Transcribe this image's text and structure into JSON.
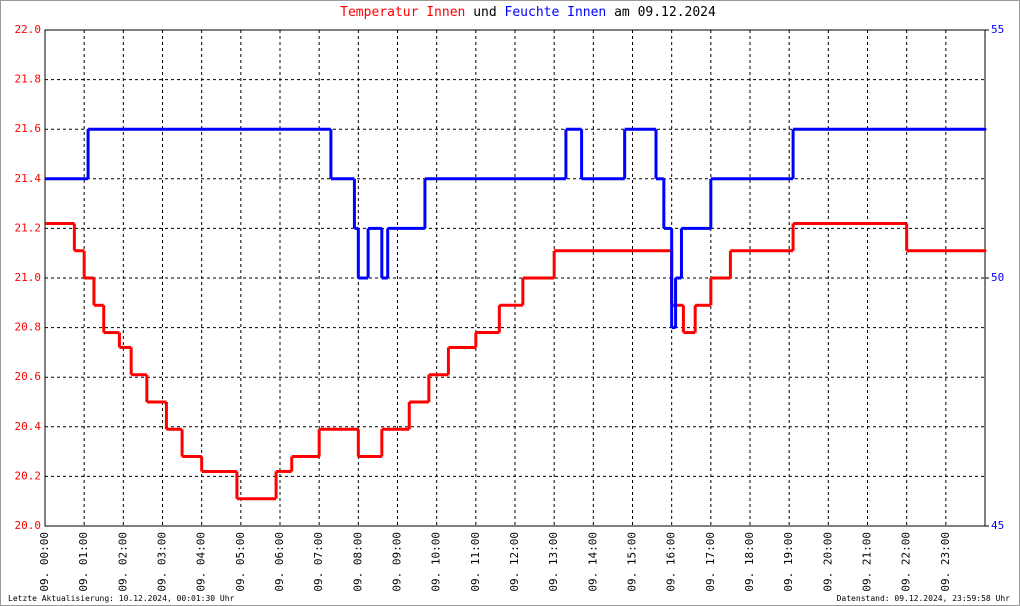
{
  "chart_data": {
    "type": "line",
    "step": "post",
    "title_parts": [
      "und",
      "am 09.12.2024"
    ],
    "footer_left": "Letzte Aktualisierung: 10.12.2024, 00:01:30 Uhr",
    "footer_right": "Datenstand: 09.12.2024, 23:59:58 Uhr",
    "xlim": [
      0,
      24
    ],
    "xticks": [
      {
        "value": 0,
        "label": "09. 00:00"
      },
      {
        "value": 1,
        "label": "09. 01:00"
      },
      {
        "value": 2,
        "label": "09. 02:00"
      },
      {
        "value": 3,
        "label": "09. 03:00"
      },
      {
        "value": 4,
        "label": "09. 04:00"
      },
      {
        "value": 5,
        "label": "09. 05:00"
      },
      {
        "value": 6,
        "label": "09. 06:00"
      },
      {
        "value": 7,
        "label": "09. 07:00"
      },
      {
        "value": 8,
        "label": "09. 08:00"
      },
      {
        "value": 9,
        "label": "09. 09:00"
      },
      {
        "value": 10,
        "label": "09. 10:00"
      },
      {
        "value": 11,
        "label": "09. 11:00"
      },
      {
        "value": 12,
        "label": "09. 12:00"
      },
      {
        "value": 13,
        "label": "09. 13:00"
      },
      {
        "value": 14,
        "label": "09. 14:00"
      },
      {
        "value": 15,
        "label": "09. 15:00"
      },
      {
        "value": 16,
        "label": "09. 16:00"
      },
      {
        "value": 17,
        "label": "09. 17:00"
      },
      {
        "value": 18,
        "label": "09. 18:00"
      },
      {
        "value": 19,
        "label": "09. 19:00"
      },
      {
        "value": 20,
        "label": "09. 20:00"
      },
      {
        "value": 21,
        "label": "09. 21:00"
      },
      {
        "value": 22,
        "label": "09. 22:00"
      },
      {
        "value": 23,
        "label": "09. 23:00"
      }
    ],
    "ylim": [
      20.0,
      22.0
    ],
    "yticks": [
      {
        "value": 20.0,
        "label": "20.0"
      },
      {
        "value": 20.2,
        "label": "20.2"
      },
      {
        "value": 20.4,
        "label": "20.4"
      },
      {
        "value": 20.6,
        "label": "20.6"
      },
      {
        "value": 20.8,
        "label": "20.8"
      },
      {
        "value": 21.0,
        "label": "21.0"
      },
      {
        "value": 21.2,
        "label": "21.2"
      },
      {
        "value": 21.4,
        "label": "21.4"
      },
      {
        "value": 21.6,
        "label": "21.6"
      },
      {
        "value": 21.8,
        "label": "21.8"
      },
      {
        "value": 22.0,
        "label": "22.0"
      }
    ],
    "y2lim": [
      45,
      55
    ],
    "y2ticks": [
      45,
      50,
      55
    ],
    "grid": true,
    "series": [
      {
        "name": "Temperatur Innen",
        "color": "#ff0000",
        "axis": "y",
        "x": [
          0,
          0.75,
          1,
          1.25,
          1.5,
          1.9,
          2.2,
          2.6,
          3.1,
          3.5,
          4,
          4.9,
          5.9,
          6.3,
          7,
          8,
          8.6,
          9.3,
          9.8,
          10.3,
          11,
          11.6,
          12.2,
          13,
          16,
          16.3,
          16.6,
          17,
          17.5,
          19.1,
          22,
          24
        ],
        "values": [
          21.22,
          21.11,
          21.0,
          20.89,
          20.78,
          20.72,
          20.61,
          20.5,
          20.39,
          20.28,
          20.22,
          20.11,
          20.22,
          20.28,
          20.39,
          20.28,
          20.39,
          20.5,
          20.61,
          20.72,
          20.78,
          20.89,
          21.0,
          21.11,
          20.89,
          20.78,
          20.89,
          21.0,
          21.11,
          21.22,
          21.11,
          21.11
        ]
      },
      {
        "name": "Feuchte Innen",
        "color": "#0000ff",
        "axis": "y2",
        "x": [
          0,
          1.1,
          7.3,
          7.9,
          8,
          8.25,
          8.6,
          8.75,
          9.7,
          13.3,
          13.7,
          14.8,
          15.6,
          15.8,
          16,
          16.1,
          16.25,
          17,
          19.1,
          24
        ],
        "values": [
          52,
          53,
          52,
          51,
          50,
          51,
          50,
          51,
          52,
          53,
          52,
          53,
          52,
          51,
          49,
          50,
          51,
          52,
          53,
          53
        ]
      }
    ]
  }
}
